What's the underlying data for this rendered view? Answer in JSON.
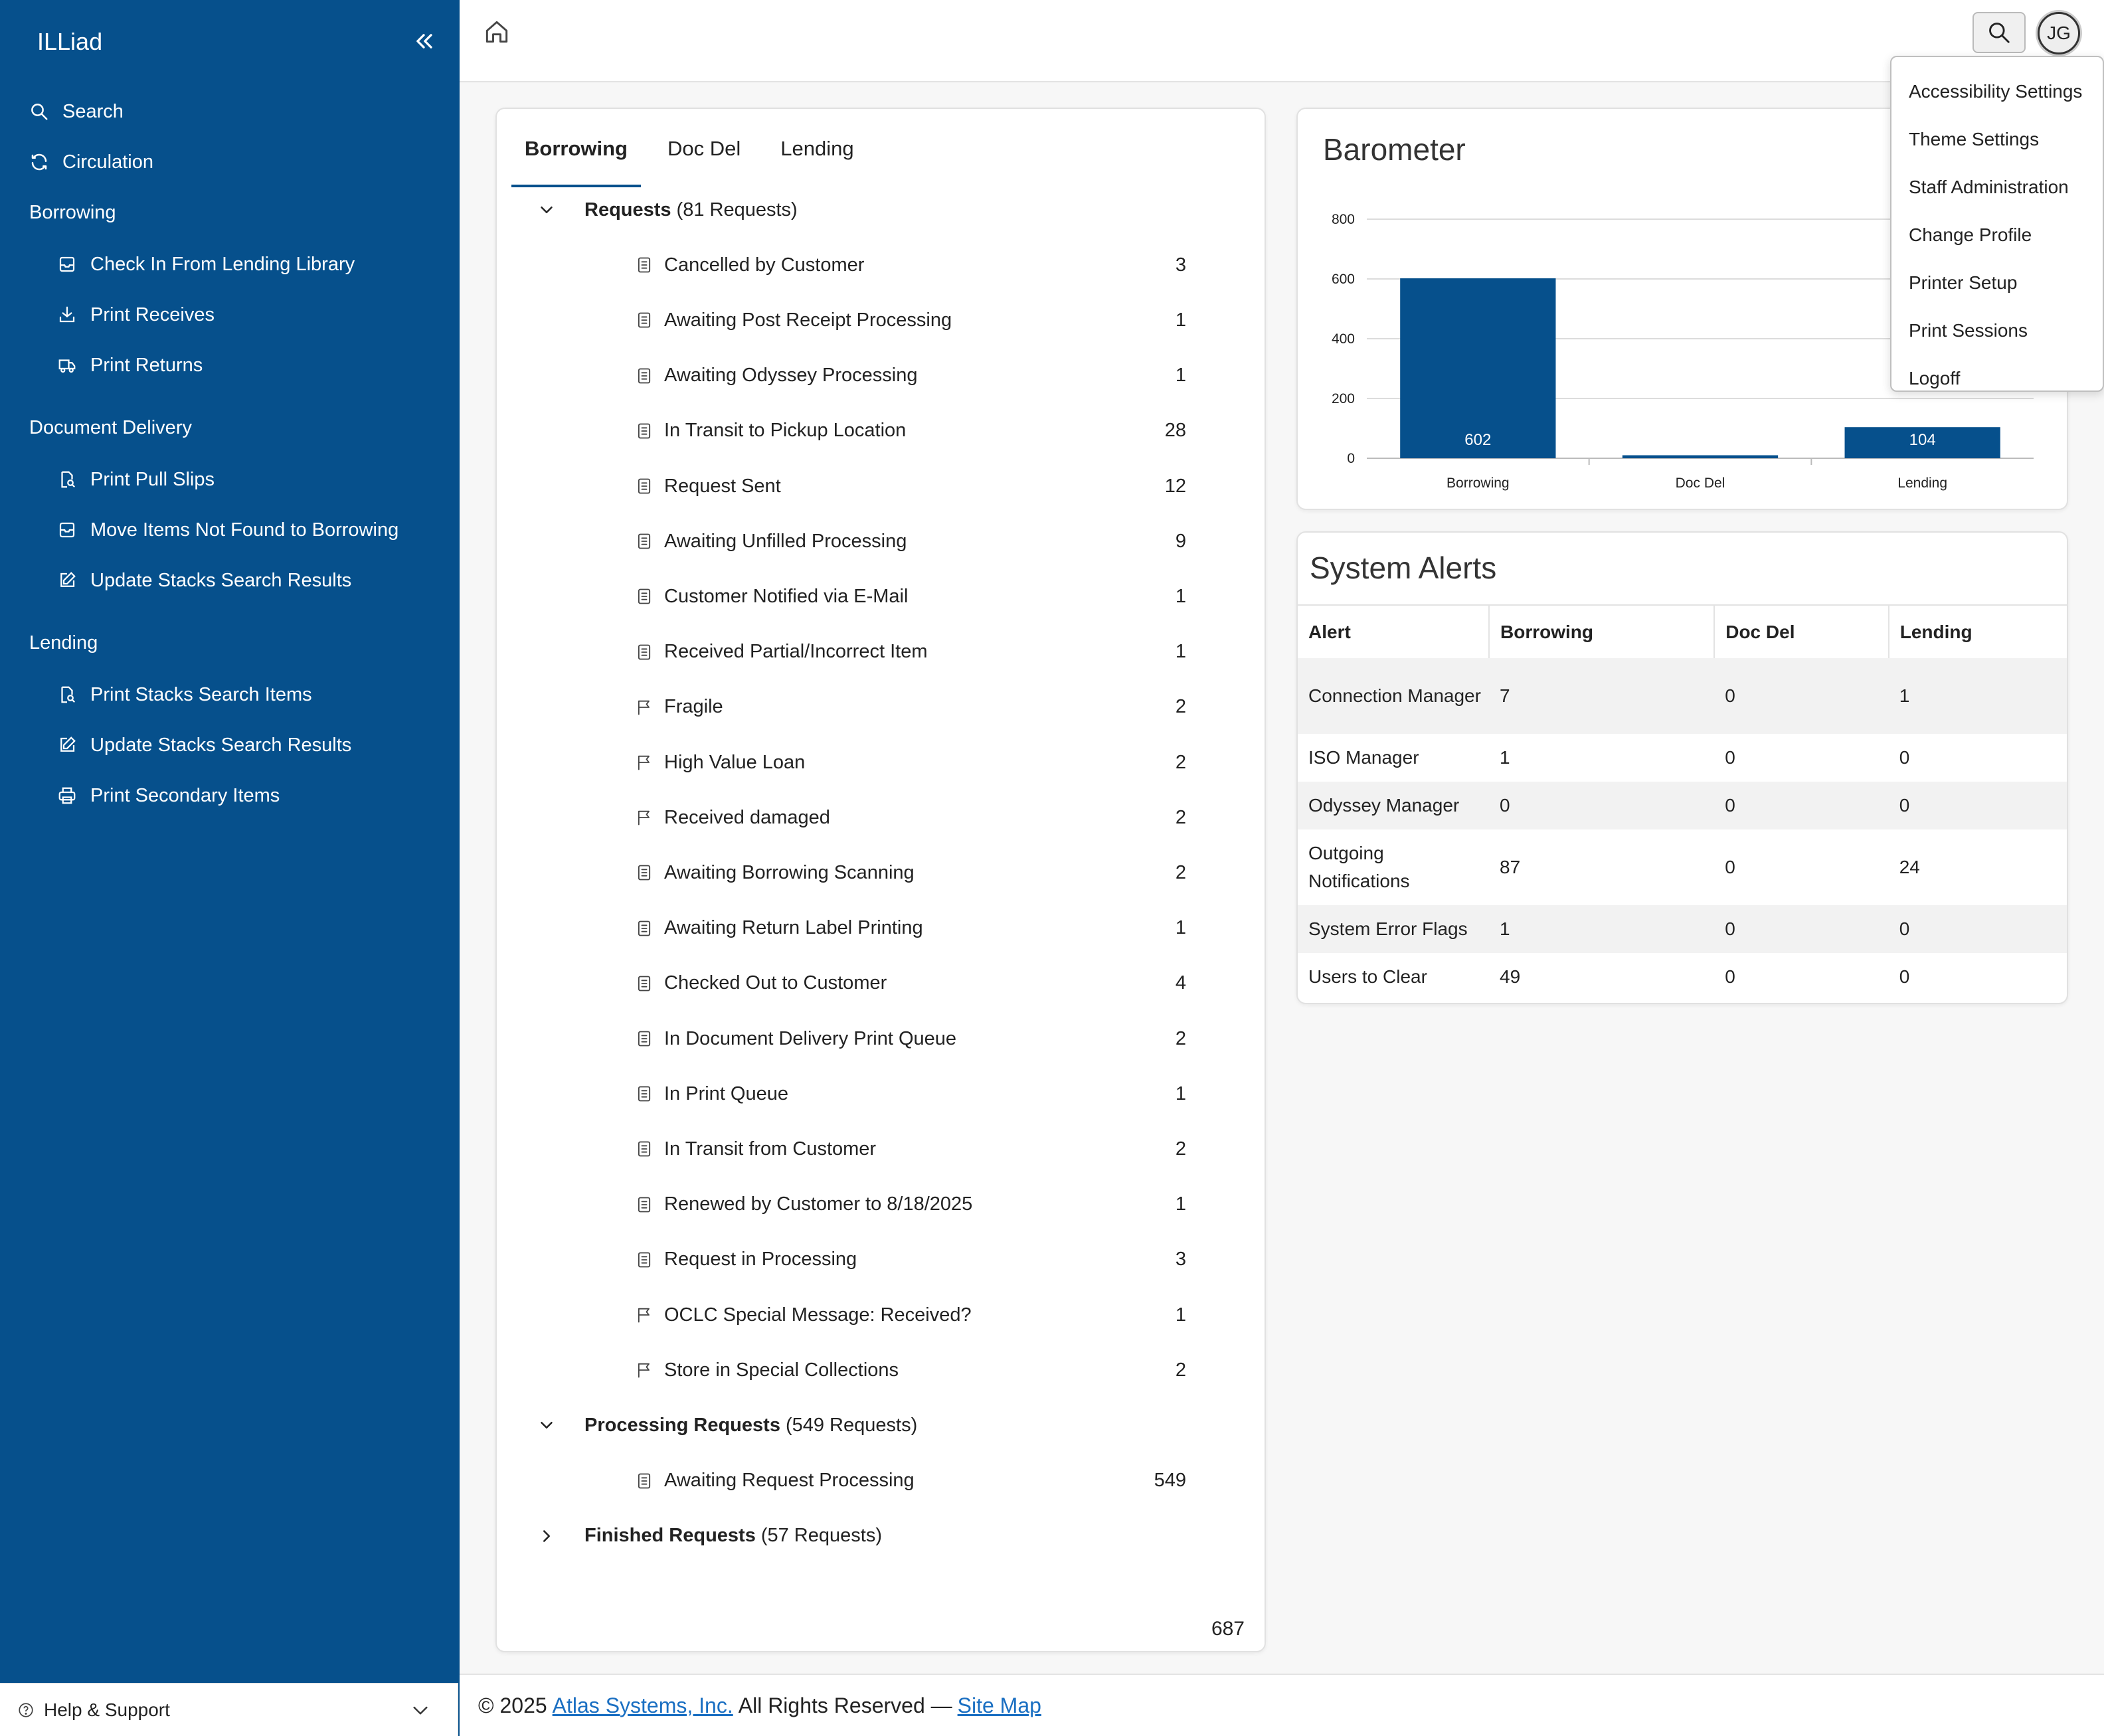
{
  "sidebar": {
    "brand": "ILLiad",
    "items": {
      "search": "Search",
      "circulation": "Circulation"
    },
    "sections": {
      "borrowing": {
        "title": "Borrowing",
        "items": [
          "Check In From Lending Library",
          "Print Receives",
          "Print Returns"
        ]
      },
      "document_delivery": {
        "title": "Document Delivery",
        "items": [
          "Print Pull Slips",
          "Move Items Not Found to Borrowing",
          "Update Stacks Search Results"
        ]
      },
      "lending": {
        "title": "Lending",
        "items": [
          "Print Stacks Search Items",
          "Update Stacks Search Results",
          "Print Secondary Items"
        ]
      }
    },
    "help": "Help & Support"
  },
  "header": {
    "avatar_initials": "JG"
  },
  "user_menu": [
    "Accessibility Settings",
    "Theme Settings",
    "Staff Administration",
    "Change Profile",
    "Printer Setup",
    "Print Sessions",
    "Logoff"
  ],
  "queues": {
    "tabs": [
      "Borrowing",
      "Doc Del",
      "Lending"
    ],
    "active_tab": "Borrowing",
    "groups": [
      {
        "title": "Requests",
        "count_label": "(81 Requests)",
        "expanded": true,
        "rows": [
          {
            "label": "Cancelled by Customer",
            "count": "3",
            "icon": "document-icon"
          },
          {
            "label": "Awaiting Post Receipt Processing",
            "count": "1",
            "icon": "document-icon"
          },
          {
            "label": "Awaiting Odyssey Processing",
            "count": "1",
            "icon": "document-icon"
          },
          {
            "label": "In Transit to Pickup Location",
            "count": "28",
            "icon": "document-icon"
          },
          {
            "label": "Request Sent",
            "count": "12",
            "icon": "document-icon"
          },
          {
            "label": "Awaiting Unfilled Processing",
            "count": "9",
            "icon": "document-icon"
          },
          {
            "label": "Customer Notified via E-Mail",
            "count": "1",
            "icon": "document-icon"
          },
          {
            "label": "Received Partial/Incorrect Item",
            "count": "1",
            "icon": "document-icon"
          },
          {
            "label": "Fragile",
            "count": "2",
            "icon": "flag-icon"
          },
          {
            "label": "High Value Loan",
            "count": "2",
            "icon": "flag-icon"
          },
          {
            "label": "Received damaged",
            "count": "2",
            "icon": "flag-icon"
          },
          {
            "label": "Awaiting Borrowing Scanning",
            "count": "2",
            "icon": "document-icon"
          },
          {
            "label": "Awaiting Return Label Printing",
            "count": "1",
            "icon": "document-icon"
          },
          {
            "label": "Checked Out to Customer",
            "count": "4",
            "icon": "document-icon"
          },
          {
            "label": "In Document Delivery Print Queue",
            "count": "2",
            "icon": "document-icon"
          },
          {
            "label": "In Print Queue",
            "count": "1",
            "icon": "document-icon"
          },
          {
            "label": "In Transit from Customer",
            "count": "2",
            "icon": "document-icon"
          },
          {
            "label": "Renewed by Customer to 8/18/2025",
            "count": "1",
            "icon": "document-icon"
          },
          {
            "label": "Request in Processing",
            "count": "3",
            "icon": "document-icon"
          },
          {
            "label": "OCLC Special Message: Received?",
            "count": "1",
            "icon": "flag-icon"
          },
          {
            "label": "Store in Special Collections",
            "count": "2",
            "icon": "flag-icon"
          }
        ]
      },
      {
        "title": "Processing Requests",
        "count_label": "(549 Requests)",
        "expanded": true,
        "rows": [
          {
            "label": "Awaiting Request Processing",
            "count": "549",
            "icon": "document-icon"
          }
        ]
      },
      {
        "title": "Finished Requests",
        "count_label": "(57 Requests)",
        "expanded": false,
        "rows": []
      }
    ],
    "total": "687"
  },
  "barometer": {
    "title": "Barometer",
    "chart_data": {
      "type": "bar",
      "categories": [
        "Borrowing",
        "Doc Del",
        "Lending"
      ],
      "values": [
        602,
        10,
        104
      ],
      "data_labels": [
        "602",
        "",
        "104"
      ],
      "y_ticks": [
        "0",
        "200",
        "400",
        "600",
        "800"
      ],
      "ylim": [
        0,
        800
      ],
      "grid": true,
      "bar_color": "#06508c"
    }
  },
  "alerts": {
    "title": "System Alerts",
    "columns": [
      "Alert",
      "Borrowing",
      "Doc Del",
      "Lending"
    ],
    "rows": [
      [
        "Connection Manager",
        "7",
        "0",
        "1"
      ],
      [
        "ISO Manager",
        "1",
        "0",
        "0"
      ],
      [
        "Odyssey Manager",
        "0",
        "0",
        "0"
      ],
      [
        "Outgoing Notifications",
        "87",
        "0",
        "24"
      ],
      [
        "System Error Flags",
        "1",
        "0",
        "0"
      ],
      [
        "Users to Clear",
        "49",
        "0",
        "0"
      ]
    ]
  },
  "footer": {
    "prefix": "© 2025",
    "company_link": "Atlas Systems, Inc.",
    "rights": "All Rights Reserved —",
    "sitemap_link": "Site Map"
  },
  "colors": {
    "sidebar": "#06508c",
    "accent": "#06508c",
    "link": "#1a6fc2"
  }
}
